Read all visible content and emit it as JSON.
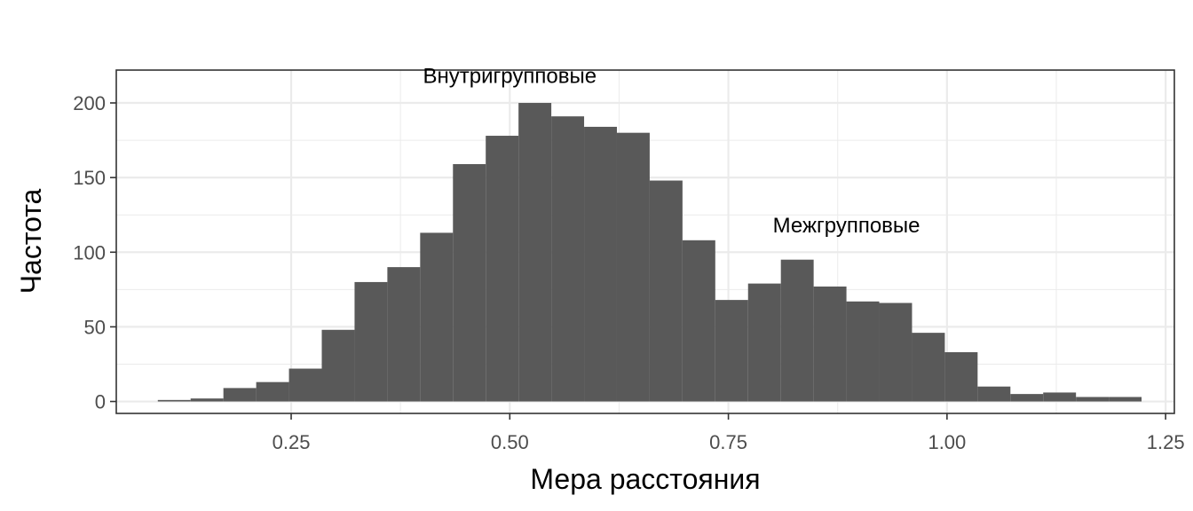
{
  "chart_data": {
    "type": "bar",
    "subtype": "histogram",
    "xlabel": "Мера расстояния",
    "ylabel": "Частота",
    "xlim": [
      0.05,
      1.26
    ],
    "ylim": [
      -8,
      222
    ],
    "x_ticks": [
      0.25,
      0.5,
      0.75,
      1.0,
      1.25
    ],
    "x_tick_labels": [
      "0.25",
      "0.50",
      "0.75",
      "1.00",
      "1.25"
    ],
    "y_ticks": [
      0,
      50,
      100,
      150,
      200
    ],
    "y_tick_labels": [
      "0",
      "50",
      "100",
      "150",
      "200"
    ],
    "bin_width": 0.0375,
    "bins": [
      {
        "start": 0.0975,
        "end": 0.135,
        "value": 1
      },
      {
        "start": 0.135,
        "end": 0.1725,
        "value": 2
      },
      {
        "start": 0.1725,
        "end": 0.21,
        "value": 9
      },
      {
        "start": 0.21,
        "end": 0.2475,
        "value": 13
      },
      {
        "start": 0.2475,
        "end": 0.285,
        "value": 22
      },
      {
        "start": 0.285,
        "end": 0.3225,
        "value": 48
      },
      {
        "start": 0.3225,
        "end": 0.36,
        "value": 80
      },
      {
        "start": 0.36,
        "end": 0.3975,
        "value": 90
      },
      {
        "start": 0.3975,
        "end": 0.435,
        "value": 113
      },
      {
        "start": 0.435,
        "end": 0.4725,
        "value": 159
      },
      {
        "start": 0.4725,
        "end": 0.51,
        "value": 178
      },
      {
        "start": 0.51,
        "end": 0.5475,
        "value": 200
      },
      {
        "start": 0.5475,
        "end": 0.585,
        "value": 191
      },
      {
        "start": 0.585,
        "end": 0.6225,
        "value": 184
      },
      {
        "start": 0.6225,
        "end": 0.66,
        "value": 180
      },
      {
        "start": 0.66,
        "end": 0.6975,
        "value": 148
      },
      {
        "start": 0.6975,
        "end": 0.735,
        "value": 108
      },
      {
        "start": 0.735,
        "end": 0.7725,
        "value": 68
      },
      {
        "start": 0.7725,
        "end": 0.81,
        "value": 79
      },
      {
        "start": 0.81,
        "end": 0.8475,
        "value": 95
      },
      {
        "start": 0.8475,
        "end": 0.885,
        "value": 77
      },
      {
        "start": 0.885,
        "end": 0.9225,
        "value": 67
      },
      {
        "start": 0.9225,
        "end": 0.96,
        "value": 66
      },
      {
        "start": 0.96,
        "end": 0.9975,
        "value": 46
      },
      {
        "start": 0.9975,
        "end": 1.035,
        "value": 33
      },
      {
        "start": 1.035,
        "end": 1.0725,
        "value": 10
      },
      {
        "start": 1.0725,
        "end": 1.11,
        "value": 5
      },
      {
        "start": 1.11,
        "end": 1.1475,
        "value": 6
      },
      {
        "start": 1.1475,
        "end": 1.185,
        "value": 3
      },
      {
        "start": 1.185,
        "end": 1.2225,
        "value": 3
      }
    ],
    "annotations": [
      {
        "text": "Внутригрупповые",
        "x": 0.5,
        "y": 218
      },
      {
        "text": "Межгрупповые",
        "x": 0.885,
        "y": 118
      }
    ],
    "bar_color": "#595959",
    "grid": true,
    "grid_color": "#ebebeb",
    "panel_border_color": "#333333"
  }
}
